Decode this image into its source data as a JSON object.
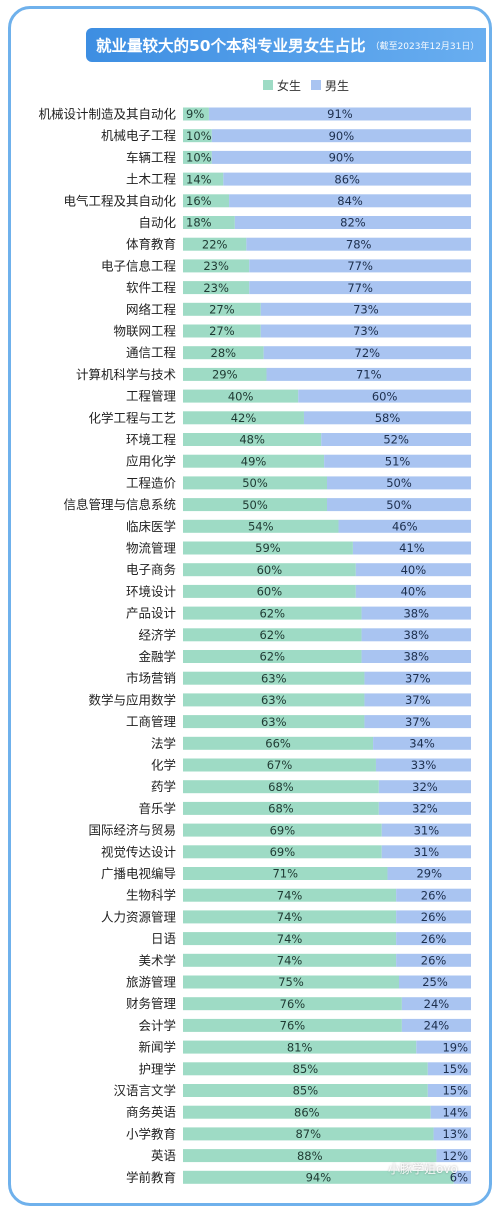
{
  "title": "就业量较大的50个本科专业男女生占比",
  "subtitle": "（截至2023年12月31日）",
  "watermark": "小豚学姐ovo",
  "colors": {
    "female": "#9edbc5",
    "male": "#a9c4f1",
    "frame": "#6fb1ec",
    "title_bg": "#3d8ee2"
  },
  "chart_data": {
    "type": "bar",
    "stacked": true,
    "orientation": "horizontal",
    "title": "就业量较大的50个本科专业男女生占比",
    "legend_position": "top",
    "categories": [
      "机械设计制造及其自动化",
      "机械电子工程",
      "车辆工程",
      "土木工程",
      "电气工程及其自动化",
      "自动化",
      "体育教育",
      "电子信息工程",
      "软件工程",
      "网络工程",
      "物联网工程",
      "通信工程",
      "计算机科学与技术",
      "工程管理",
      "化学工程与工艺",
      "环境工程",
      "应用化学",
      "工程造价",
      "信息管理与信息系统",
      "临床医学",
      "物流管理",
      "电子商务",
      "环境设计",
      "产品设计",
      "经济学",
      "金融学",
      "市场营销",
      "数学与应用数学",
      "工商管理",
      "法学",
      "化学",
      "药学",
      "音乐学",
      "国际经济与贸易",
      "视觉传达设计",
      "广播电视编导",
      "生物科学",
      "人力资源管理",
      "日语",
      "美术学",
      "旅游管理",
      "财务管理",
      "会计学",
      "新闻学",
      "护理学",
      "汉语言文学",
      "商务英语",
      "小学教育",
      "英语",
      "学前教育"
    ],
    "series": [
      {
        "name": "女生",
        "values": [
          9,
          10,
          10,
          14,
          16,
          18,
          22,
          23,
          23,
          27,
          27,
          28,
          29,
          40,
          42,
          48,
          49,
          50,
          50,
          54,
          59,
          60,
          60,
          62,
          62,
          62,
          63,
          63,
          63,
          66,
          67,
          68,
          68,
          69,
          69,
          71,
          74,
          74,
          74,
          74,
          75,
          76,
          76,
          81,
          85,
          85,
          86,
          87,
          88,
          94
        ]
      },
      {
        "name": "男生",
        "values": [
          91,
          90,
          90,
          86,
          84,
          82,
          78,
          77,
          77,
          73,
          73,
          72,
          71,
          60,
          58,
          52,
          51,
          50,
          50,
          46,
          41,
          40,
          40,
          38,
          38,
          38,
          37,
          37,
          37,
          34,
          33,
          32,
          32,
          31,
          31,
          29,
          26,
          26,
          26,
          26,
          25,
          24,
          24,
          19,
          15,
          15,
          14,
          13,
          12,
          6
        ]
      }
    ],
    "value_suffix": "%",
    "xlim": [
      0,
      100
    ]
  }
}
